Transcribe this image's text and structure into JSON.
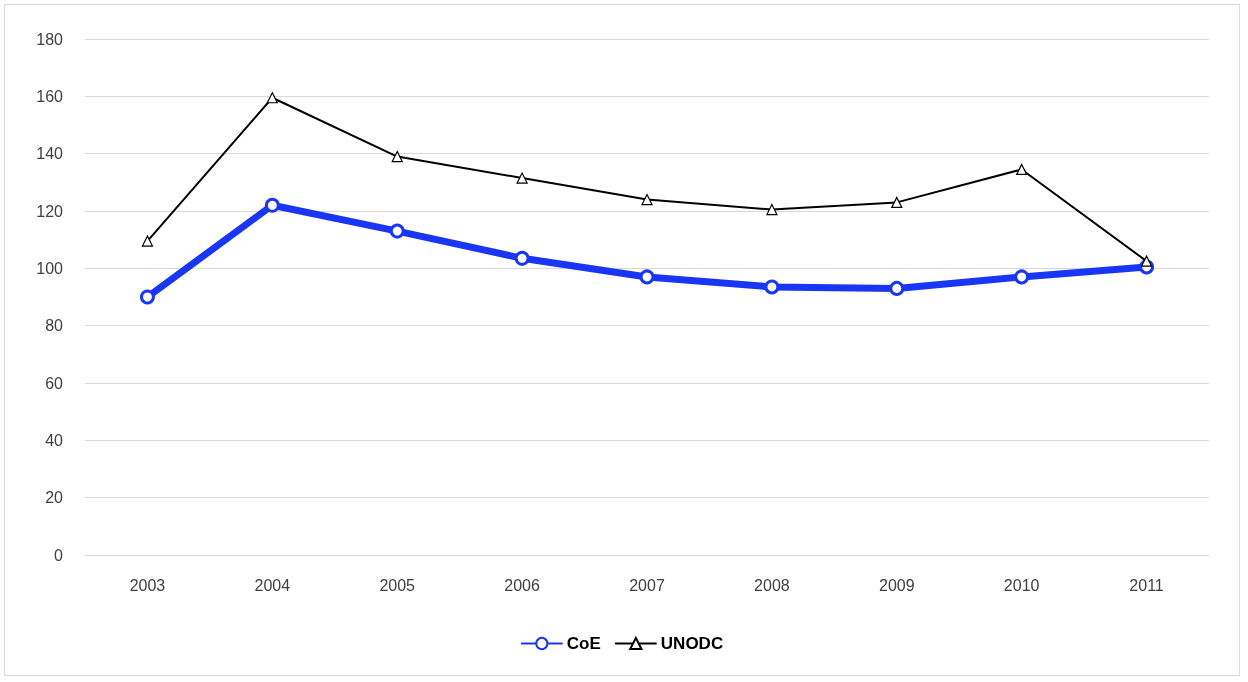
{
  "chart_data": {
    "type": "line",
    "categories": [
      "2003",
      "2004",
      "2005",
      "2006",
      "2007",
      "2008",
      "2009",
      "2010",
      "2011"
    ],
    "series": [
      {
        "name": "CoE",
        "color": "#1a36f5",
        "marker": "circle",
        "values": [
          90,
          122,
          113,
          103.5,
          97,
          93.5,
          93,
          97,
          100.5
        ]
      },
      {
        "name": "UNODC",
        "color": "#000000",
        "marker": "triangle",
        "values": [
          109.5,
          159.5,
          139,
          131.5,
          124,
          120.5,
          123,
          134.5,
          102.5
        ]
      }
    ],
    "ylim": [
      0,
      180
    ],
    "yticks": [
      0,
      20,
      40,
      60,
      80,
      100,
      120,
      140,
      160,
      180
    ],
    "grid": "y",
    "legend": "bottom",
    "line_style": "solid"
  }
}
